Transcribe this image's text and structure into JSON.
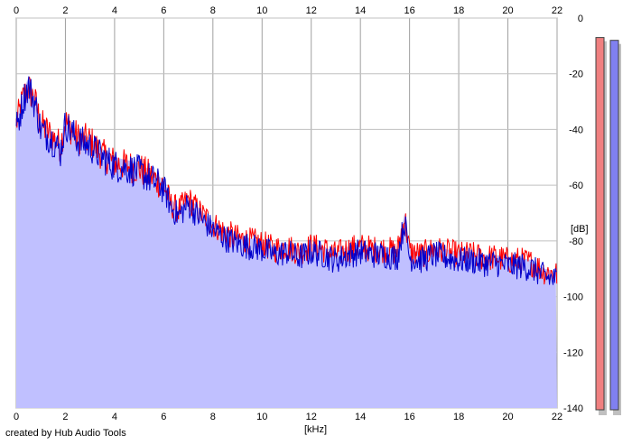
{
  "chart_data": {
    "type": "line",
    "xlabel": "[kHz]",
    "ylabel": "[dB]",
    "xlim": [
      0,
      22
    ],
    "ylim": [
      -140,
      0
    ],
    "x_ticks": [
      "0",
      "2",
      "4",
      "6",
      "8",
      "10",
      "12",
      "14",
      "16",
      "18",
      "20",
      "22"
    ],
    "y_ticks": [
      "0",
      "-20",
      "-40",
      "-60",
      "-80",
      "-100",
      "-120",
      "-140"
    ],
    "grid": true,
    "series": [
      {
        "color": "#ff0000",
        "x": [
          0,
          0.3,
          0.5,
          0.8,
          1.0,
          1.5,
          1.8,
          2.0,
          2.5,
          3.0,
          3.5,
          4.0,
          4.5,
          5.0,
          5.5,
          6.0,
          6.3,
          6.6,
          7.0,
          7.5,
          8.0,
          8.5,
          9.0,
          9.5,
          10,
          10.5,
          11,
          11.5,
          12,
          12.5,
          13,
          13.5,
          14,
          14.5,
          15,
          15.5,
          15.8,
          16.0,
          16.5,
          17,
          17.5,
          18,
          18.5,
          19,
          19.5,
          20,
          20.5,
          21,
          21.5,
          22
        ],
        "values": [
          -38,
          -28,
          -25,
          -31,
          -38,
          -43,
          -46,
          -37,
          -43,
          -44,
          -49,
          -52,
          -53,
          -54,
          -57,
          -60,
          -67,
          -69,
          -65,
          -70,
          -74,
          -77,
          -79,
          -80,
          -81,
          -83,
          -82,
          -84,
          -82,
          -83,
          -85,
          -83,
          -82,
          -83,
          -83,
          -84,
          -71,
          -84,
          -85,
          -83,
          -84,
          -85,
          -85,
          -86,
          -86,
          -87,
          -87,
          -88,
          -91,
          -92
        ]
      },
      {
        "color": "#0000cc",
        "x": [
          0,
          0.3,
          0.5,
          0.8,
          1.0,
          1.5,
          1.8,
          2.0,
          2.5,
          3.0,
          3.5,
          4.0,
          4.5,
          5.0,
          5.5,
          6.0,
          6.3,
          6.6,
          7.0,
          7.5,
          8.0,
          8.5,
          9.0,
          9.5,
          10,
          10.5,
          11,
          11.5,
          12,
          12.5,
          13,
          13.5,
          14,
          14.5,
          15,
          15.5,
          15.8,
          16.0,
          16.5,
          17,
          17.5,
          18,
          18.5,
          19,
          19.5,
          20,
          20.5,
          21,
          21.5,
          22
        ],
        "values": [
          -40,
          -29,
          -24,
          -32,
          -40,
          -44,
          -48,
          -38,
          -44,
          -46,
          -50,
          -53,
          -54,
          -55,
          -58,
          -61,
          -68,
          -71,
          -67,
          -72,
          -76,
          -79,
          -81,
          -82,
          -83,
          -85,
          -84,
          -86,
          -84,
          -85,
          -87,
          -85,
          -84,
          -85,
          -85,
          -86,
          -73,
          -86,
          -87,
          -85,
          -86,
          -87,
          -87,
          -88,
          -88,
          -89,
          -89,
          -90,
          -93,
          -94
        ]
      }
    ],
    "meters": [
      {
        "color": "#f08080",
        "value": -7
      },
      {
        "color": "#8080f0",
        "value": -8
      }
    ]
  },
  "footer": "created by Hub Audio Tools"
}
